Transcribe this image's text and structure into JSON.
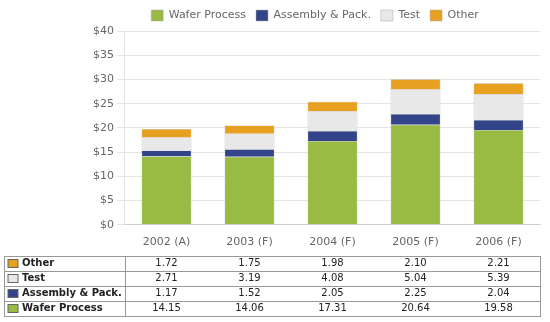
{
  "chart_data": {
    "type": "bar",
    "stacked": true,
    "categories": [
      "2002 (A)",
      "2003 (F)",
      "2004 (F)",
      "2005 (F)",
      "2006 (F)"
    ],
    "series": [
      {
        "name": "Wafer Process",
        "color": "#99bb44",
        "values": [
          14.15,
          14.06,
          17.31,
          20.64,
          19.58
        ],
        "value_labels": [
          "14.15",
          "14.06",
          "17.31",
          "20.64",
          "19.58"
        ]
      },
      {
        "name": "Assembly & Pack.",
        "color": "#33448a",
        "values": [
          1.17,
          1.52,
          2.05,
          2.25,
          2.04
        ],
        "value_labels": [
          "1.17",
          "1.52",
          "2.05",
          "2.25",
          "2.04"
        ]
      },
      {
        "name": "Test",
        "color": "#e8e8e8",
        "values": [
          2.71,
          3.19,
          4.08,
          5.04,
          5.39
        ],
        "value_labels": [
          "2.71",
          "3.19",
          "4.08",
          "5.04",
          "5.39"
        ]
      },
      {
        "name": "Other",
        "color": "#e8a020",
        "values": [
          1.72,
          1.75,
          1.98,
          2.1,
          2.21
        ],
        "value_labels": [
          "1.72",
          "1.75",
          "1.98",
          "2.10",
          "2.21"
        ]
      }
    ],
    "ylim": [
      0,
      40
    ],
    "yticks": [
      {
        "value": 0,
        "label": "$0"
      },
      {
        "value": 5,
        "label": "$5"
      },
      {
        "value": 10,
        "label": "$10"
      },
      {
        "value": 15,
        "label": "$15"
      },
      {
        "value": 20,
        "label": "$20"
      },
      {
        "value": 25,
        "label": "$25"
      },
      {
        "value": 30,
        "label": "$30"
      },
      {
        "value": 35,
        "label": "$35"
      },
      {
        "value": 40,
        "label": "$40"
      }
    ],
    "grid": true,
    "legend": "top"
  }
}
